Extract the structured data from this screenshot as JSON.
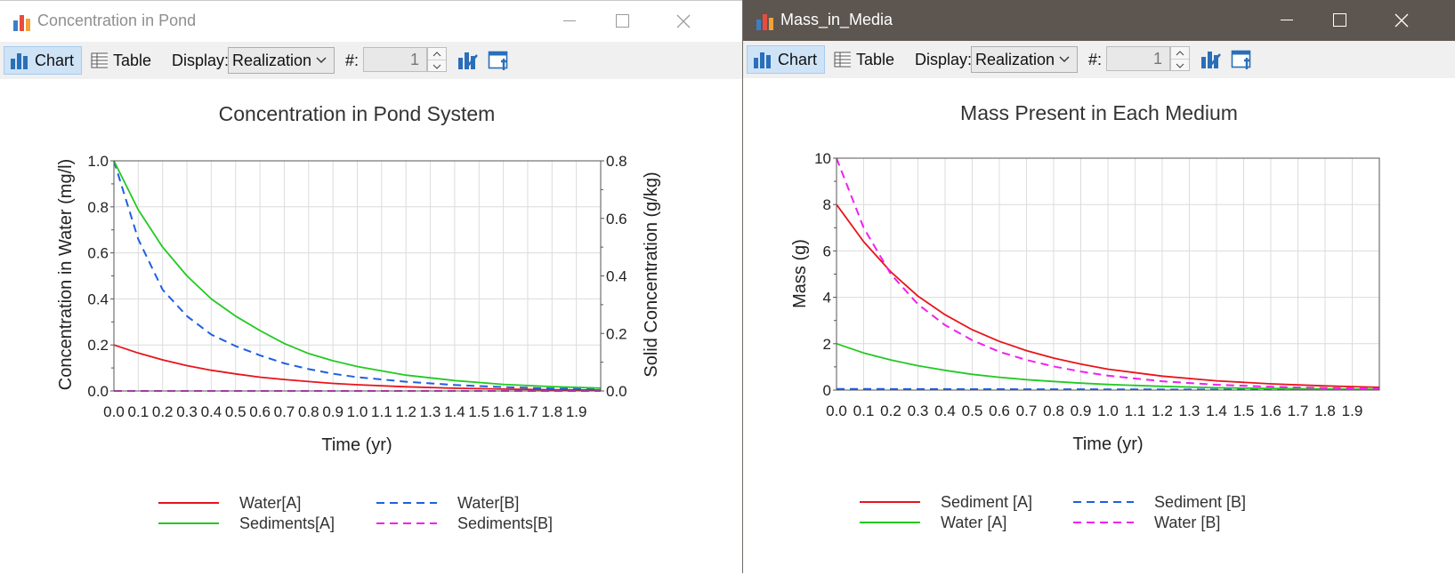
{
  "windows": [
    {
      "title": "Concentration in Pond",
      "toolbar": {
        "chart_label": "Chart",
        "table_label": "Table",
        "display_label": "Display:",
        "display_value": "Realization",
        "number_label": "#:",
        "number_value": "1"
      },
      "colors": {
        "titlebar": "#ffffff",
        "title_text": "#8f8f8f"
      }
    },
    {
      "title": "Mass_in_Media",
      "toolbar": {
        "chart_label": "Chart",
        "table_label": "Table",
        "display_label": "Display:",
        "display_value": "Realization",
        "number_label": "#:",
        "number_value": "1"
      },
      "colors": {
        "titlebar": "#5d5650",
        "title_text": "#ffffff"
      }
    }
  ],
  "chart_data": [
    {
      "type": "line",
      "title": "Concentration in Pond System",
      "xlabel": "Time (yr)",
      "ylabel": "Concentration in Water (mg/l)",
      "y2label": "Solid Concentration (g/kg)",
      "xlim": [
        0,
        2
      ],
      "ylim": [
        0,
        1
      ],
      "y2lim": [
        0,
        0.8
      ],
      "xticks": [
        "0.0",
        "0.1",
        "0.2",
        "0.3",
        "0.4",
        "0.5",
        "0.6",
        "0.7",
        "0.8",
        "0.9",
        "1.0",
        "1.1",
        "1.2",
        "1.3",
        "1.4",
        "1.5",
        "1.6",
        "1.7",
        "1.8",
        "1.9"
      ],
      "yticks": [
        "0.0",
        "0.2",
        "0.4",
        "0.6",
        "0.8",
        "1.0"
      ],
      "y2ticks": [
        "0.0",
        "0.2",
        "0.4",
        "0.6",
        "0.8"
      ],
      "grid": true,
      "legend_position": "bottom",
      "series": [
        {
          "name": "Water[A]",
          "axis": "left",
          "color": "#e8141c",
          "dash": "solid",
          "x": [
            0,
            0.1,
            0.2,
            0.3,
            0.4,
            0.5,
            0.6,
            0.7,
            0.8,
            0.9,
            1.0,
            1.2,
            1.4,
            1.6,
            1.8,
            2.0
          ],
          "y": [
            0.2,
            0.165,
            0.135,
            0.11,
            0.09,
            0.074,
            0.06,
            0.05,
            0.041,
            0.033,
            0.027,
            0.018,
            0.012,
            0.008,
            0.005,
            0.004
          ]
        },
        {
          "name": "Water[B]",
          "axis": "left",
          "color": "#1f5fe0",
          "dash": "dashed",
          "x": [
            0,
            0.1,
            0.2,
            0.3,
            0.4,
            0.5,
            0.6,
            0.7,
            0.8,
            0.9,
            1.0,
            1.2,
            1.4,
            1.6,
            1.8,
            2.0
          ],
          "y": [
            1.0,
            0.66,
            0.44,
            0.325,
            0.245,
            0.195,
            0.155,
            0.12,
            0.095,
            0.075,
            0.06,
            0.04,
            0.026,
            0.017,
            0.011,
            0.007
          ]
        },
        {
          "name": "Sediments[A]",
          "axis": "right",
          "color": "#22c922",
          "dash": "solid",
          "x": [
            0,
            0.1,
            0.2,
            0.3,
            0.4,
            0.5,
            0.6,
            0.7,
            0.8,
            0.9,
            1.0,
            1.2,
            1.4,
            1.6,
            1.8,
            2.0
          ],
          "y": [
            0.8,
            0.63,
            0.5,
            0.4,
            0.32,
            0.26,
            0.21,
            0.165,
            0.13,
            0.105,
            0.085,
            0.055,
            0.036,
            0.023,
            0.015,
            0.01
          ]
        },
        {
          "name": "Sediments[B]",
          "axis": "right",
          "color": "#f020f0",
          "dash": "dashed",
          "x": [
            0,
            0.5,
            1.0,
            1.5,
            2.0
          ],
          "y": [
            0,
            0,
            0,
            0,
            0
          ]
        }
      ]
    },
    {
      "type": "line",
      "title": "Mass Present in Each Medium",
      "xlabel": "Time (yr)",
      "ylabel": "Mass (g)",
      "xlim": [
        0,
        2
      ],
      "ylim": [
        0,
        10
      ],
      "xticks": [
        "0.0",
        "0.1",
        "0.2",
        "0.3",
        "0.4",
        "0.5",
        "0.6",
        "0.7",
        "0.8",
        "0.9",
        "1.0",
        "1.1",
        "1.2",
        "1.3",
        "1.4",
        "1.5",
        "1.6",
        "1.7",
        "1.8",
        "1.9"
      ],
      "yticks": [
        "0",
        "2",
        "4",
        "6",
        "8",
        "10"
      ],
      "grid": true,
      "legend_position": "bottom",
      "series": [
        {
          "name": "Sediment [A]",
          "color": "#e8141c",
          "dash": "solid",
          "x": [
            0,
            0.1,
            0.2,
            0.3,
            0.4,
            0.5,
            0.6,
            0.7,
            0.8,
            0.9,
            1.0,
            1.2,
            1.4,
            1.6,
            1.8,
            2.0
          ],
          "y": [
            8.0,
            6.4,
            5.1,
            4.05,
            3.25,
            2.6,
            2.1,
            1.7,
            1.38,
            1.12,
            0.9,
            0.6,
            0.4,
            0.27,
            0.18,
            0.12
          ]
        },
        {
          "name": "Sediment [B]",
          "color": "#1f5fe0",
          "dash": "dashed",
          "x": [
            0,
            0.5,
            1.0,
            1.5,
            2.0
          ],
          "y": [
            0.05,
            0.04,
            0.03,
            0.02,
            0.02
          ]
        },
        {
          "name": "Water [A]",
          "color": "#22c922",
          "dash": "solid",
          "x": [
            0,
            0.1,
            0.2,
            0.3,
            0.4,
            0.5,
            0.6,
            0.7,
            0.8,
            0.9,
            1.0,
            1.2,
            1.4,
            1.6,
            1.8,
            2.0
          ],
          "y": [
            2.0,
            1.6,
            1.3,
            1.05,
            0.85,
            0.68,
            0.55,
            0.45,
            0.37,
            0.3,
            0.24,
            0.16,
            0.1,
            0.07,
            0.045,
            0.03
          ]
        },
        {
          "name": "Water [B]",
          "color": "#f020f0",
          "dash": "dashed",
          "x": [
            0,
            0.1,
            0.2,
            0.3,
            0.4,
            0.5,
            0.6,
            0.7,
            0.8,
            0.9,
            1.0,
            1.2,
            1.4,
            1.6,
            1.8,
            2.0
          ],
          "y": [
            10.0,
            7.0,
            5.0,
            3.7,
            2.8,
            2.15,
            1.65,
            1.3,
            1.02,
            0.8,
            0.62,
            0.38,
            0.23,
            0.14,
            0.09,
            0.06
          ]
        }
      ]
    }
  ]
}
